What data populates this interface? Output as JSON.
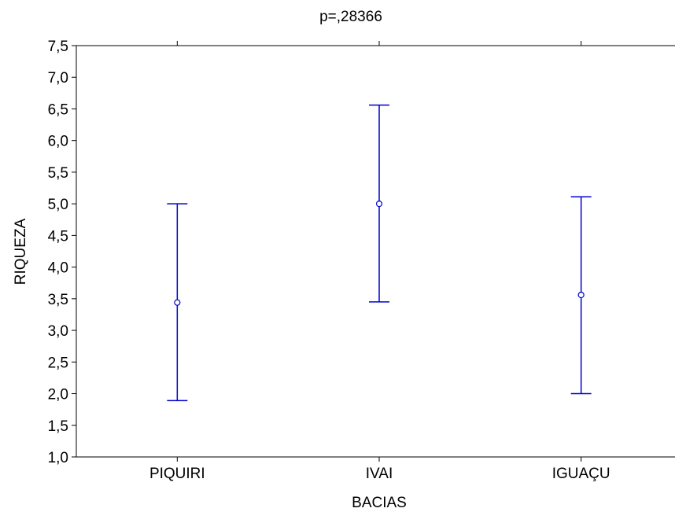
{
  "chart_data": {
    "type": "errorbar",
    "title": "p=,28366",
    "xlabel": "BACIAS",
    "ylabel": "RIQUEZA",
    "categories": [
      "PIQUIRI",
      "IVAI",
      "IGUAÇU"
    ],
    "ylim": [
      1.0,
      7.5
    ],
    "yticks": [
      "1,0",
      "1,5",
      "2,0",
      "2,5",
      "3,0",
      "3,5",
      "4,0",
      "4,5",
      "5,0",
      "5,5",
      "6,0",
      "6,5",
      "7,0",
      "7,5"
    ],
    "series": [
      {
        "points": [
          {
            "category": "PIQUIRI",
            "mean": 3.44,
            "lower": 1.89,
            "upper": 5.0
          },
          {
            "category": "IVAI",
            "mean": 5.0,
            "lower": 3.45,
            "upper": 6.56
          },
          {
            "category": "IGUAÇU",
            "mean": 3.56,
            "lower": 2.0,
            "upper": 5.11
          }
        ]
      }
    ],
    "grid": false,
    "color": "#0000cc"
  }
}
